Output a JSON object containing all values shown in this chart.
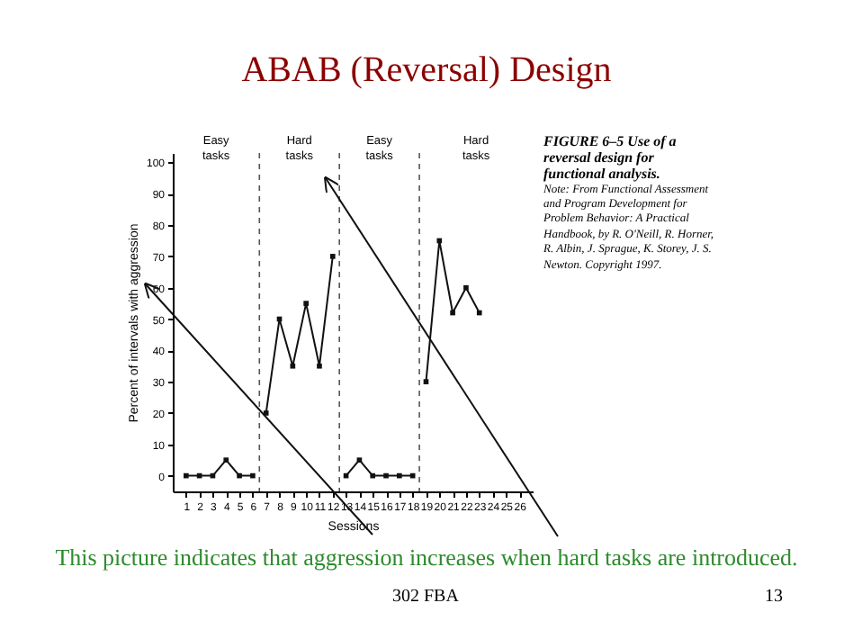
{
  "chart_data": {
    "type": "line",
    "title": "ABAB (Reversal) Design",
    "xlabel": "Sessions",
    "ylabel": "Percent of intervals with aggression",
    "series": [
      {
        "color": "#111111",
        "x": [
          1,
          2,
          3,
          4,
          5,
          6
        ],
        "values": [
          0,
          0,
          0,
          5,
          0,
          0
        ]
      },
      {
        "color": "#111111",
        "x": [
          7,
          8,
          9,
          10,
          11,
          12
        ],
        "values": [
          20,
          50,
          35,
          55,
          35,
          70
        ]
      },
      {
        "color": "#111111",
        "x": [
          13,
          14,
          15,
          16,
          17,
          18
        ],
        "values": [
          0,
          5,
          0,
          0,
          0,
          0
        ]
      },
      {
        "color": "#111111",
        "x": [
          19,
          20,
          21,
          22,
          23
        ],
        "values": [
          30,
          75,
          52,
          60,
          52
        ]
      }
    ],
    "xlim": [
      0,
      27
    ],
    "xticks": [
      1,
      2,
      3,
      4,
      5,
      6,
      7,
      8,
      9,
      10,
      11,
      12,
      13,
      14,
      15,
      16,
      17,
      18,
      19,
      20,
      21,
      22,
      23,
      24,
      25,
      26
    ],
    "ylim": [
      -5,
      103
    ],
    "yticks": [
      0,
      10,
      20,
      30,
      40,
      50,
      60,
      70,
      80,
      90,
      100
    ],
    "ref_lines": [
      {
        "axis": "x",
        "value": 6.5,
        "line_style": "dashed",
        "color": "#555555"
      },
      {
        "axis": "x",
        "value": 12.5,
        "line_style": "dashed",
        "color": "#555555"
      },
      {
        "axis": "x",
        "value": 18.5,
        "line_style": "dashed",
        "color": "#555555"
      }
    ],
    "marker": "square",
    "line_style": "solid",
    "grid": false,
    "legend": false,
    "annotations": [
      "Easy tasks",
      "Hard tasks",
      "Easy tasks",
      "Hard tasks",
      "FIGURE 6–5 Use of a reversal design for functional analysis.",
      "Note: From Functional Assessment and Program Development for Problem Behavior: A Practical Handbook, by R. O'Neill, R. Horner, R. Albin, J. Sprague, K. Storey, J. S. Newton. Copyright 1997.",
      "This picture indicates that aggression increases when hard tasks are introduced.",
      "302 FBA",
      "13"
    ]
  }
}
